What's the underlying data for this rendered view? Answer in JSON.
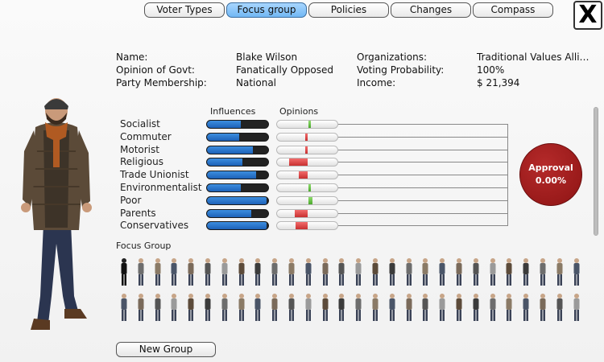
{
  "tabs": [
    {
      "label": "Voter Types",
      "active": false
    },
    {
      "label": "Focus group",
      "active": true
    },
    {
      "label": "Policies",
      "active": false
    },
    {
      "label": "Changes",
      "active": false
    },
    {
      "label": "Compass",
      "active": false
    }
  ],
  "close_label": "X",
  "profile": {
    "name_label": "Name:",
    "name": "Blake Wilson",
    "opinion_label": "Opinion of Govt:",
    "opinion": "Fanatically Opposed",
    "party_label": "Party Membership:",
    "party": "National",
    "organizations_label": "Organizations:",
    "organizations": "Traditional Values Allia...",
    "voting_label": "Voting Probability:",
    "voting": "100%",
    "income_label": "Income:",
    "income": "$ 21,394"
  },
  "headers": {
    "influences": "Influences",
    "opinions": "Opinions"
  },
  "groups": [
    {
      "label": "Socialist",
      "influence": 0.55,
      "opinion": 0.05
    },
    {
      "label": "Commuter",
      "influence": 0.52,
      "opinion": -0.04
    },
    {
      "label": "Motorist",
      "influence": 0.75,
      "opinion": -0.04
    },
    {
      "label": "Religious",
      "influence": 0.58,
      "opinion": -0.3
    },
    {
      "label": "Trade Unionist",
      "influence": 0.8,
      "opinion": -0.15
    },
    {
      "label": "Environmentalist",
      "influence": 0.55,
      "opinion": 0.04
    },
    {
      "label": "Poor",
      "influence": 0.97,
      "opinion": 0.07
    },
    {
      "label": "Parents",
      "influence": 0.73,
      "opinion": -0.22
    },
    {
      "label": "Conservatives",
      "influence": 0.97,
      "opinion": -0.2
    }
  ],
  "approval": {
    "label": "Approval",
    "value": "0.00%"
  },
  "focus_group_label": "Focus Group",
  "new_group_label": "New Group",
  "colors": {
    "tab_active": "#84c3f8",
    "influence_fill": "#2a74cc",
    "opinion_negative": "#d94040",
    "opinion_positive": "#5bbf3a",
    "approval": "#9b1b1b"
  }
}
